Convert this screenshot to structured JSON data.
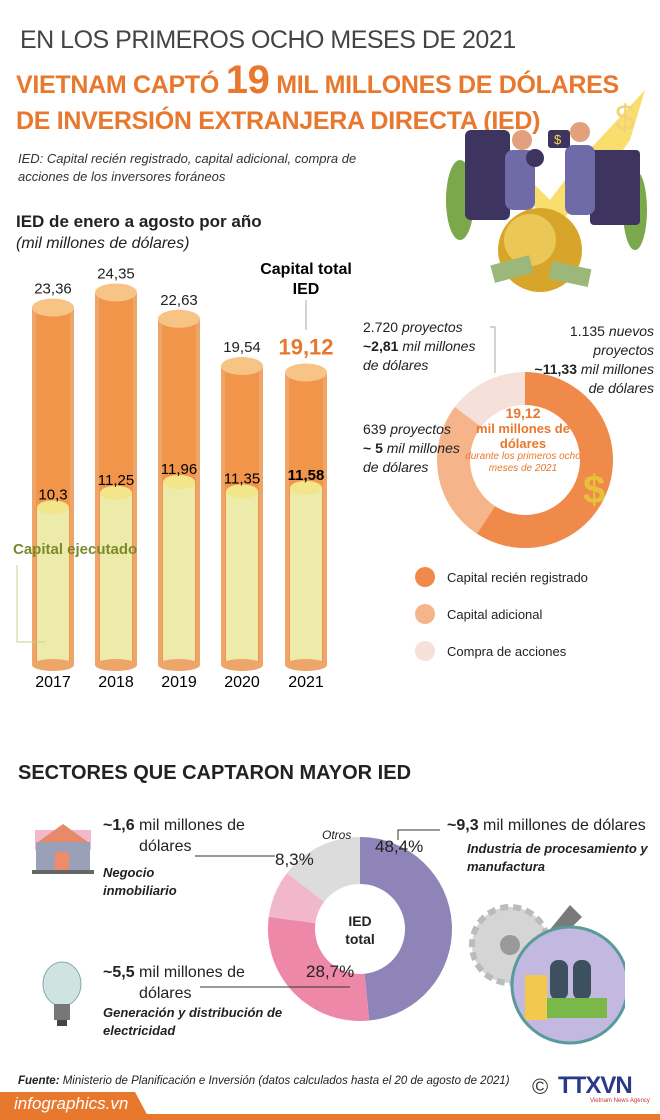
{
  "header": {
    "supertitle": "EN LOS PRIMEROS OCHO MESES DE 2021",
    "title_part1": "VIETNAM CAPTÓ ",
    "title_number": "19",
    "title_part2": " MIL MILLONES DE DÓLARES",
    "title_line2": "DE INVERSIÓN EXTRANJERA DIRECTA (IED)",
    "definition": "IED: Capital recién registrado, capital adicional, compra de acciones de los inversores foráneos"
  },
  "colors": {
    "accent": "#e8782d",
    "orange_bar": "#f0954a",
    "executed_bar": "#ecebaa",
    "executed_label": "#7a8a2a",
    "new": "#ef8a4a",
    "additional": "#f6b48a",
    "shares": "#f6e1da",
    "manufacturing": "#8f84b8",
    "electricity": "#ee88a8",
    "real_estate": "#f1b8cc",
    "others": "#dcdcdc"
  },
  "chart_data": [
    {
      "type": "bar",
      "title": "IED de enero a agosto por año",
      "ylabel": "(mil millones de dólares)",
      "categories": [
        "2017",
        "2018",
        "2019",
        "2020",
        "2021"
      ],
      "series": [
        {
          "name": "Capital total IED",
          "values": [
            23.36,
            24.35,
            22.63,
            19.54,
            19.12
          ],
          "labels": [
            "23,36",
            "24,35",
            "22,63",
            "19,54",
            "19,12"
          ]
        },
        {
          "name": "Capital ejecutado",
          "values": [
            10.3,
            11.25,
            11.96,
            11.35,
            11.58
          ],
          "labels": [
            "10,3",
            "11,25",
            "11,96",
            "11,35",
            "11,58"
          ]
        }
      ],
      "total_label_line1": "Capital total",
      "total_label_line2": "IED",
      "executed_label": "Capital ejecutado",
      "ylim": [
        0,
        25
      ]
    },
    {
      "type": "pie",
      "center_value": "19,12",
      "center_unit": "mil millones de dólares",
      "center_note": "durante los primeros ocho meses de 2021",
      "slices": [
        {
          "name": "Capital recién registrado",
          "value": 11.33,
          "count": "1.135",
          "count_label": "nuevos proyectos",
          "amount": "~11,33",
          "unit": "mil millones de dólares"
        },
        {
          "name": "Capital adicional",
          "value": 5,
          "count": "639",
          "count_label": "proyectos",
          "amount": "~ 5",
          "unit": "mil millones de dólares"
        },
        {
          "name": "Compra de acciones",
          "value": 2.81,
          "count": "2.720",
          "count_label": "proyectos",
          "amount": "~2,81",
          "unit": "mil millones de dólares"
        }
      ]
    },
    {
      "type": "pie",
      "title": "SECTORES QUE CAPTARON MAYOR IED",
      "center_label_1": "IED",
      "center_label_2": "total",
      "slices": [
        {
          "name": "Industria de procesamiento y manufactura",
          "value": 48.4,
          "label": "48,4%",
          "amount": "~9,3",
          "unit": "mil millones de dólares"
        },
        {
          "name": "Generación y distribución de electricidad",
          "value": 28.7,
          "label": "28,7%",
          "amount": "~5,5",
          "unit": "mil millones de dólares"
        },
        {
          "name": "Negocio inmobiliario",
          "value": 8.3,
          "label": "8,3%",
          "amount": "~1,6",
          "unit": "mil millones de dólares"
        },
        {
          "name": "Otros",
          "value": 14.6,
          "label": "Otros"
        }
      ]
    }
  ],
  "legend": [
    "Capital recién registrado",
    "Capital adicional",
    "Compra de acciones"
  ],
  "footer": {
    "source_label": "Fuente:",
    "source_text": " Ministerio de Planificación e Inversión (datos calculados hasta el 20 de agosto de 2021)",
    "site": "infographics.vn",
    "copyright": "©",
    "logo": "TTXVN",
    "logo_sub": "Vietnam News Agency"
  }
}
